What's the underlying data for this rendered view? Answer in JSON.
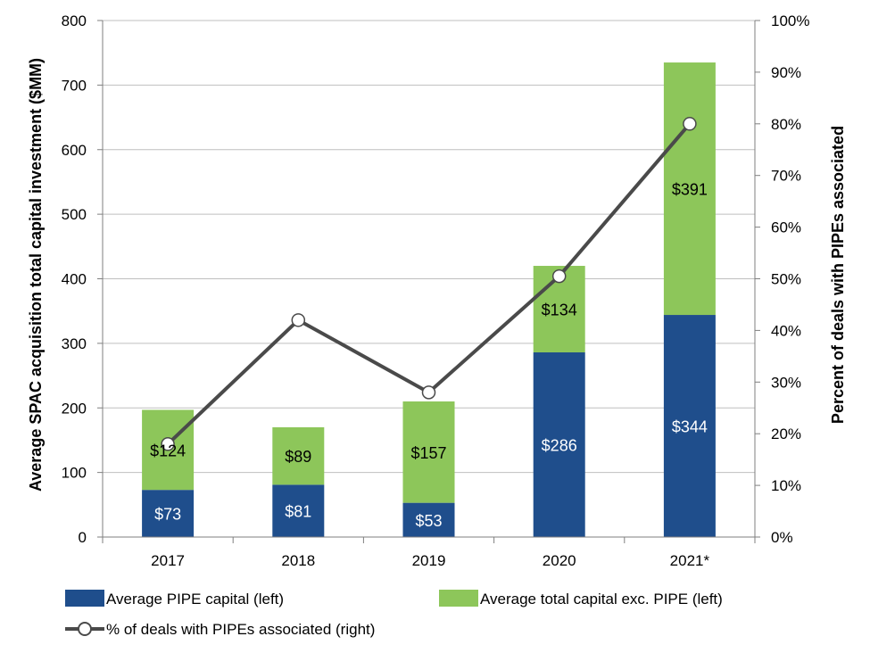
{
  "chart_data": {
    "type": "bar",
    "stacked": true,
    "categories": [
      "2017",
      "2018",
      "2019",
      "2020",
      "2021*"
    ],
    "series": [
      {
        "name": "Average PIPE capital (left)",
        "values": [
          73,
          81,
          53,
          286,
          344
        ],
        "labels": [
          "$73",
          "$81",
          "$53",
          "$286",
          "$344"
        ],
        "color": "#1F4E8C",
        "label_color": "#ffffff",
        "axis": "left"
      },
      {
        "name": "Average total capital exc. PIPE (left)",
        "values": [
          124,
          89,
          157,
          134,
          391
        ],
        "labels": [
          "$124",
          "$89",
          "$157",
          "$134",
          "$391"
        ],
        "color": "#8DC65A",
        "label_color": "#000000",
        "axis": "left"
      }
    ],
    "line_series": {
      "name": "% of deals with PIPEs associated (right)",
      "type": "line",
      "values": [
        18,
        42,
        28,
        50.5,
        80
      ],
      "color": "#4A4A4A",
      "marker_fill": "#ffffff",
      "axis": "right"
    },
    "ylabel": "Average SPAC acquisition total capital investment ($MM)",
    "y2label": "Percent of deals with PIPEs associated",
    "ylim": [
      0,
      800
    ],
    "y2lim": [
      0,
      100
    ],
    "yticks": [
      "0",
      "100",
      "200",
      "300",
      "400",
      "500",
      "600",
      "700",
      "800"
    ],
    "y2ticks": [
      "0%",
      "10%",
      "20%",
      "30%",
      "40%",
      "50%",
      "60%",
      "70%",
      "80%",
      "90%",
      "100%"
    ],
    "grid": true,
    "legend_position": "bottom"
  }
}
